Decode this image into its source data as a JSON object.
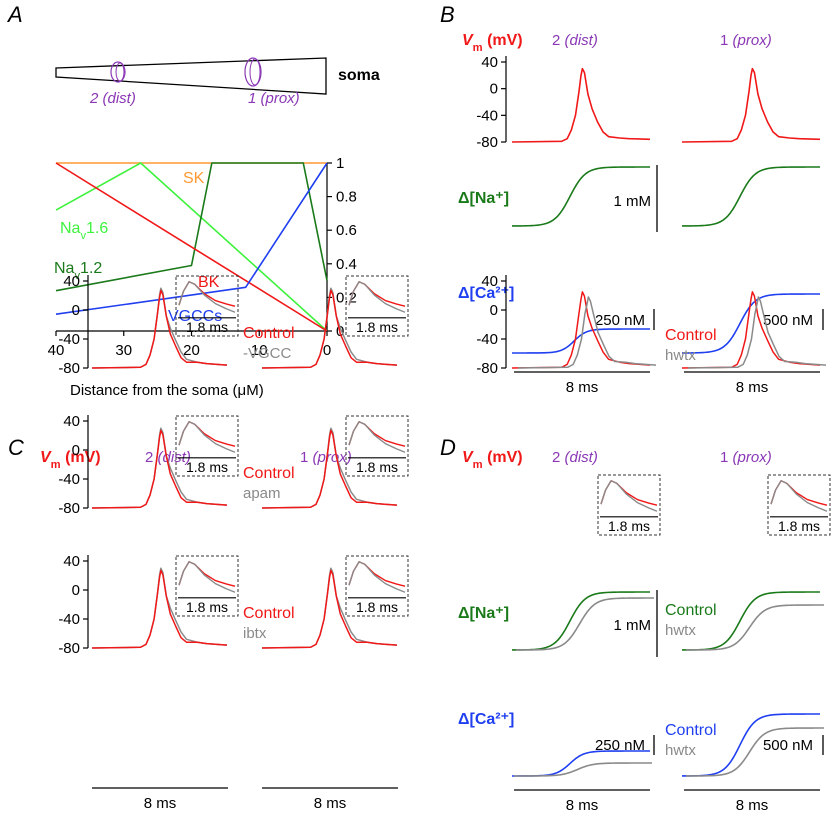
{
  "panels": {
    "a": "A",
    "b": "B",
    "c": "C",
    "d": "D"
  },
  "colors": {
    "red": "#f01818",
    "green": "#1a7a1a",
    "blue": "#1f3ff0",
    "purple": "#8a38b5",
    "grey": "#8a8a8a",
    "orange": "#ff9933",
    "light_green": "#3ef23e",
    "black": "#000000"
  },
  "common": {
    "vm_label_v": "V",
    "vm_label_sub": "m",
    "vm_label_unit": " (mV)",
    "site2": "2 ",
    "site2_em": "(dist)",
    "site1": "1 ",
    "site1_em": "(prox)",
    "time_scale": "8 ms",
    "inset_scale": "1.8 ms",
    "vm_ticks": [
      "40",
      "0",
      "-40",
      "-80"
    ],
    "na_label": "Δ[Na⁺]",
    "ca_label": "Δ[Ca²⁺]",
    "na_scale": "1 mM",
    "ca_scale_dist": "250 nM",
    "ca_scale_prox": "500 nM"
  },
  "panel_a": {
    "soma": "soma",
    "site2_label": "2 (dist)",
    "site1_label": "1 (prox)",
    "xlabel": "Distance from the soma (μM)",
    "x_ticks": [
      "40",
      "30",
      "20",
      "10",
      "0"
    ],
    "y_ticks": [
      "1",
      "0.8",
      "0.6",
      "0.4",
      "0.2",
      "0"
    ],
    "labels": {
      "sk": "SK",
      "nav16": "Na",
      "nav16_sub": "v",
      "nav16_rest": "1.6",
      "nav12": "Na",
      "nav12_sub": "v",
      "nav12_rest": "1.2",
      "bk": "BK",
      "vgcc": "VGCCs"
    }
  },
  "panel_c": {
    "control": "Control",
    "conditions": [
      "-VGCC",
      "apam",
      "ibtx"
    ]
  },
  "panel_d": {
    "control": "Control",
    "hwtx": "hwtx"
  },
  "chart_data": {
    "type": "line",
    "xlabel": "Distance from the soma (μM)",
    "ylabel": "",
    "xlim": [
      40,
      0
    ],
    "ylim": [
      0,
      1
    ],
    "series": [
      {
        "name": "SK",
        "color": "#ff9933",
        "x": [
          40,
          0
        ],
        "y": [
          1,
          1
        ]
      },
      {
        "name": "Nav1.6",
        "color": "#3ef23e",
        "x": [
          40,
          27.5,
          0
        ],
        "y": [
          0.72,
          1,
          0
        ]
      },
      {
        "name": "Nav1.2",
        "color": "#1a7a1a",
        "x": [
          40,
          20,
          17,
          8,
          3.5,
          0
        ],
        "y": [
          0.24,
          0.39,
          1,
          1,
          1,
          0.3
        ]
      },
      {
        "name": "BK",
        "color": "#f01818",
        "x": [
          40,
          0
        ],
        "y": [
          1,
          0
        ]
      },
      {
        "name": "VGCCs",
        "color": "#1f3ff0",
        "x": [
          40,
          12,
          0
        ],
        "y": [
          0.1,
          0.26,
          1
        ]
      }
    ]
  }
}
